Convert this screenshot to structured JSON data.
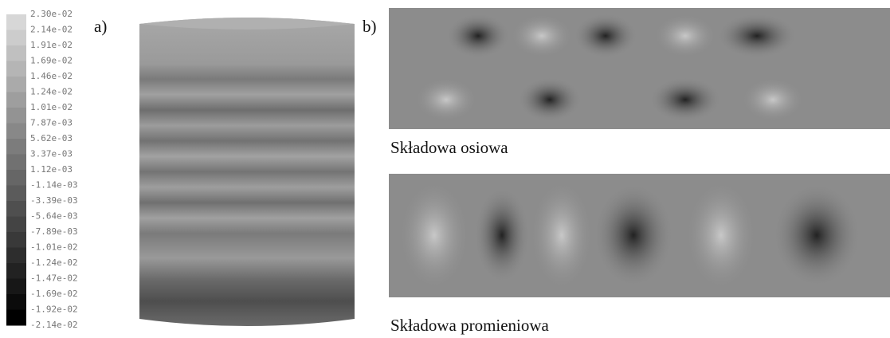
{
  "colorbar": {
    "labels": [
      "2.30e-02",
      "2.14e-02",
      "1.91e-02",
      "1.69e-02",
      "1.46e-02",
      "1.24e-02",
      "1.01e-02",
      "7.87e-03",
      "5.62e-03",
      "3.37e-03",
      "1.12e-03",
      "-1.14e-03",
      "-3.39e-03",
      "-5.64e-03",
      "-7.89e-03",
      "-1.01e-02",
      "-1.24e-02",
      "-1.47e-02",
      "-1.69e-02",
      "-1.92e-02",
      "-2.14e-02"
    ]
  },
  "panels": [
    {
      "label": "a)"
    },
    {
      "label": "b)",
      "captions": [
        "Składowa osiowa",
        "Składowa promieniowa"
      ]
    }
  ]
}
